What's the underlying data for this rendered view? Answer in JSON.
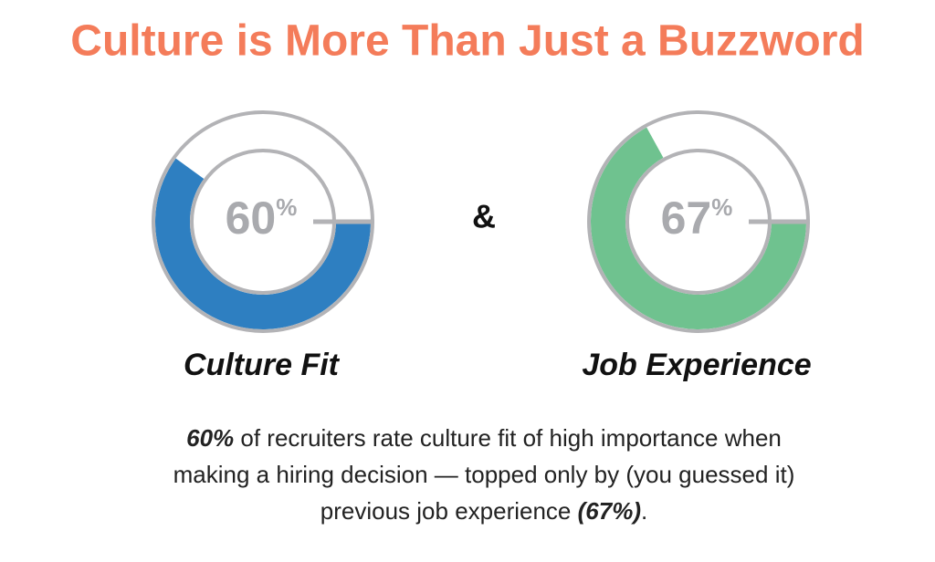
{
  "title": "Culture is More Than Just a Buzzword",
  "connector": "&",
  "chart_data": [
    {
      "type": "donut",
      "label": "Culture Fit",
      "values": [
        60
      ],
      "value_labels": [
        "60%"
      ],
      "color": "#2e7fc1"
    },
    {
      "type": "donut",
      "label": "Job Experience",
      "values": [
        67
      ],
      "value_labels": [
        "67%"
      ],
      "color": "#6fc28f"
    }
  ],
  "paragraph": {
    "lines": [
      [
        {
          "text": "60%",
          "bold": true
        },
        {
          "text": " of recruiters rate culture fit of high importance when",
          "bold": false
        }
      ],
      [
        {
          "text": "making a hiring decision — topped only by (you guessed it)",
          "bold": false
        }
      ],
      [
        {
          "text": "previous job experience ",
          "bold": false
        },
        {
          "text": "(67%)",
          "bold": true
        },
        {
          "text": ".",
          "bold": false
        }
      ]
    ]
  }
}
